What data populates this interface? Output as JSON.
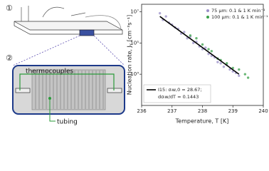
{
  "diagram": {
    "step_labels": [
      "①",
      "②"
    ],
    "labels": {
      "thermocouples": "thermocouples",
      "tubing": "tubing"
    }
  },
  "chart_data": {
    "type": "scatter",
    "xlabel": "Temperature, T [K]",
    "ylabel": "Nucleation rate, Jᵥ [cm⁻³s⁻¹]",
    "xlim": [
      236,
      240
    ],
    "xticks": [
      236,
      237,
      238,
      239,
      240
    ],
    "ylim": [
      10,
      30000000
    ],
    "log_y": true,
    "yticks": [
      {
        "value": 1000,
        "label": "10³"
      },
      {
        "value": 100000,
        "label": "10⁵"
      },
      {
        "value": 10000000,
        "label": "10⁷"
      }
    ],
    "legend": "upper right",
    "series": [
      {
        "name": "75 μm: 0.1 & 1 K min⁻¹",
        "color": "#9a8fc8",
        "x": [
          236.6,
          236.7,
          236.8,
          236.9,
          237.0,
          237.1,
          237.2,
          237.3,
          237.4,
          237.5,
          237.6,
          237.7,
          237.8,
          237.9,
          238.0,
          238.1,
          238.2,
          238.3,
          238.4,
          238.5,
          238.6,
          238.7,
          238.8,
          238.9,
          239.0,
          239.1,
          239.2
        ],
        "values": [
          8000000,
          3000000,
          5000000,
          2000000,
          1500000,
          1000000,
          800000,
          400000,
          500000,
          200000,
          250000,
          100000,
          120000,
          60000,
          40000,
          50000,
          20000,
          15000,
          12000,
          6000,
          5000,
          3000,
          4000,
          2000,
          1500,
          1200,
          800
        ]
      },
      {
        "name": "100 μm: 0.1 & 1 K min⁻¹",
        "color": "#3aa04a",
        "x": [
          237.6,
          237.8,
          238.0,
          238.2,
          238.3,
          238.5,
          238.6,
          238.8,
          239.0,
          239.2,
          239.4,
          239.5
        ],
        "values": [
          300000,
          200000,
          80000,
          40000,
          30000,
          10000,
          8000,
          5000,
          2500,
          2000,
          1000,
          600
        ]
      }
    ],
    "fit": {
      "name": [
        "I15: σᵢw,0 = 28.67;",
        "dσᵢw/dT = 0.1443"
      ],
      "color": "#000000",
      "x": [
        236.6,
        239.2
      ],
      "values": [
        5000000,
        1000
      ]
    }
  }
}
